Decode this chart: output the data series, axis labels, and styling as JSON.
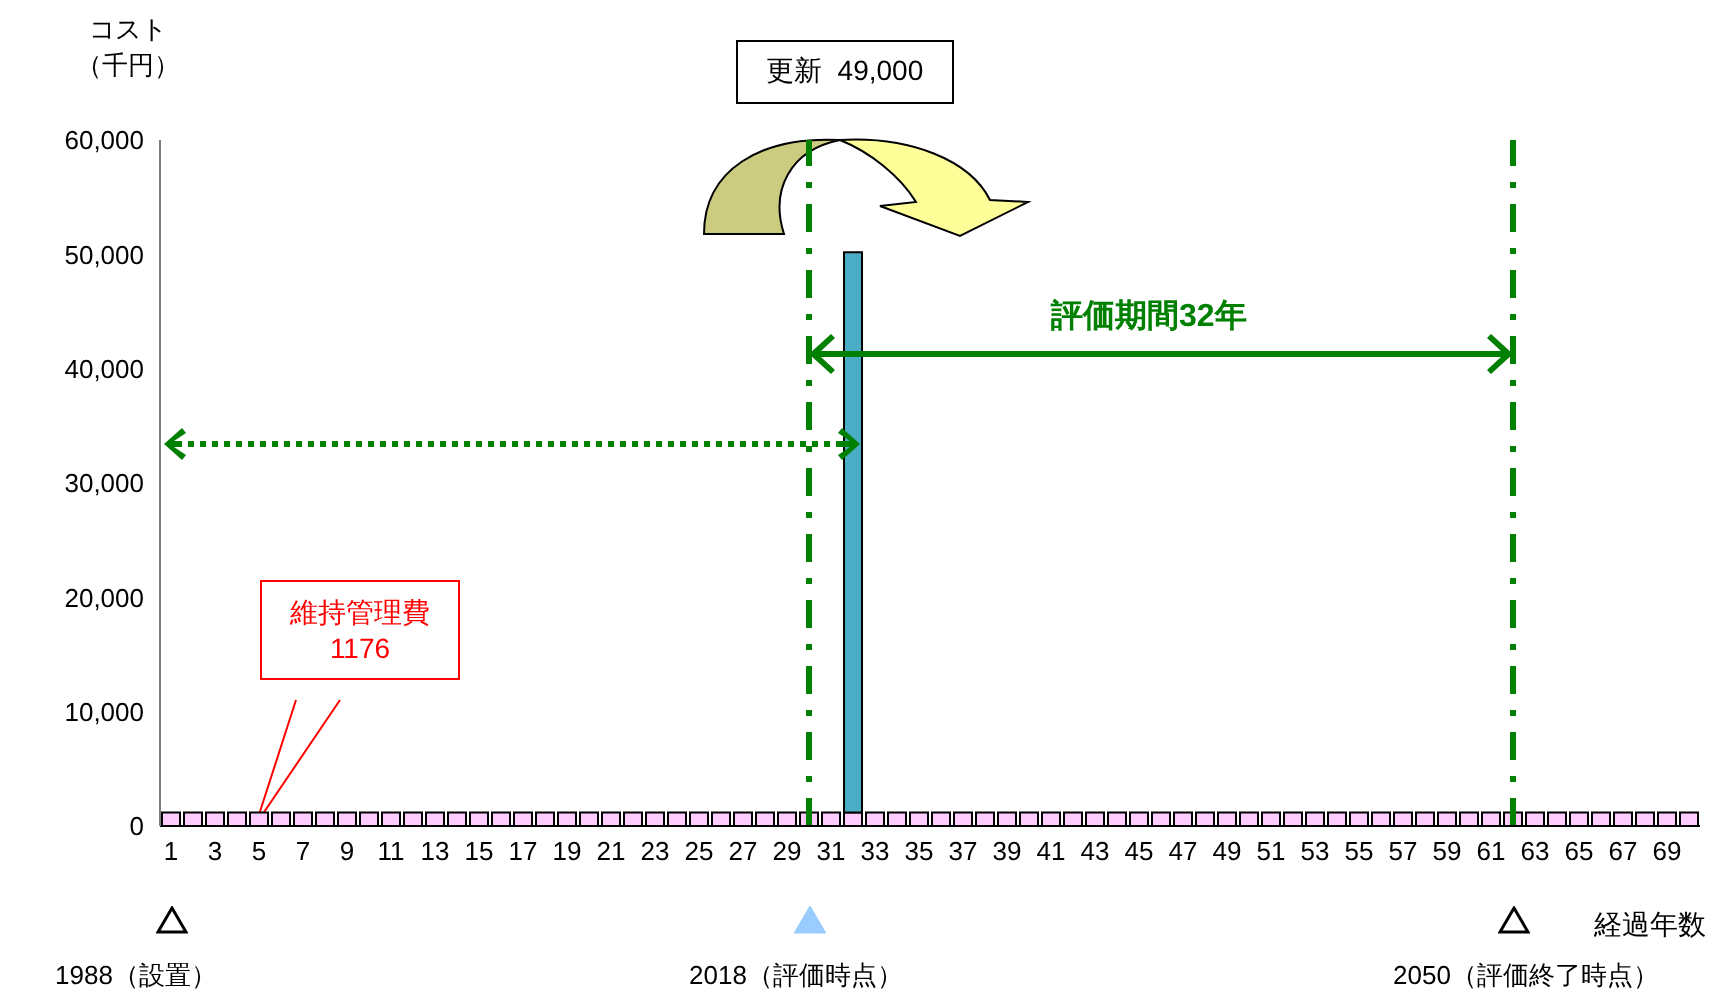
{
  "chart_data": {
    "type": "bar",
    "stacked": true,
    "x": [
      1,
      2,
      3,
      4,
      5,
      6,
      7,
      8,
      9,
      10,
      11,
      12,
      13,
      14,
      15,
      16,
      17,
      18,
      19,
      20,
      21,
      22,
      23,
      24,
      25,
      26,
      27,
      28,
      29,
      30,
      31,
      32,
      33,
      34,
      35,
      36,
      37,
      38,
      39,
      40,
      41,
      42,
      43,
      44,
      45,
      46,
      47,
      48,
      49,
      50,
      51,
      52,
      53,
      54,
      55,
      56,
      57,
      58,
      59,
      60,
      61,
      62,
      63,
      64,
      65,
      66,
      67,
      68,
      69,
      70
    ],
    "series": [
      {
        "color": "#ffccff",
        "values": [
          1176,
          1176,
          1176,
          1176,
          1176,
          1176,
          1176,
          1176,
          1176,
          1176,
          1176,
          1176,
          1176,
          1176,
          1176,
          1176,
          1176,
          1176,
          1176,
          1176,
          1176,
          1176,
          1176,
          1176,
          1176,
          1176,
          1176,
          1176,
          1176,
          1176,
          1176,
          1176,
          1176,
          1176,
          1176,
          1176,
          1176,
          1176,
          1176,
          1176,
          1176,
          1176,
          1176,
          1176,
          1176,
          1176,
          1176,
          1176,
          1176,
          1176,
          1176,
          1176,
          1176,
          1176,
          1176,
          1176,
          1176,
          1176,
          1176,
          1176,
          1176,
          1176,
          1176,
          1176,
          1176,
          1176,
          1176,
          1176,
          1176,
          1176
        ]
      },
      {
        "color": "#4bacc6",
        "values": [
          null,
          null,
          null,
          null,
          null,
          null,
          null,
          null,
          null,
          null,
          null,
          null,
          null,
          null,
          null,
          null,
          null,
          null,
          null,
          null,
          null,
          null,
          null,
          null,
          null,
          null,
          null,
          null,
          null,
          null,
          null,
          49000,
          null,
          null,
          null,
          null,
          null,
          null,
          null,
          null,
          null,
          null,
          null,
          null,
          null,
          null,
          null,
          null,
          null,
          null,
          null,
          null,
          null,
          null,
          null,
          null,
          null,
          null,
          null,
          null,
          null,
          null,
          null,
          null,
          null,
          null,
          null,
          null,
          null,
          null
        ]
      }
    ],
    "xlim": [
      0.5,
      70.5
    ],
    "xticks": [
      1,
      3,
      5,
      7,
      9,
      11,
      13,
      15,
      17,
      19,
      21,
      23,
      25,
      27,
      29,
      31,
      33,
      35,
      37,
      39,
      41,
      43,
      45,
      47,
      49,
      51,
      53,
      55,
      57,
      59,
      61,
      63,
      65,
      67,
      69
    ],
    "ylim": [
      0,
      60000
    ],
    "yticks": [
      {
        "value": 0,
        "label": "0"
      },
      {
        "value": 10000,
        "label": "10,000"
      },
      {
        "value": 20000,
        "label": "20,000"
      },
      {
        "value": 30000,
        "label": "30,000"
      },
      {
        "value": 40000,
        "label": "40,000"
      },
      {
        "value": 50000,
        "label": "50,000"
      },
      {
        "value": 60000,
        "label": "60,000"
      }
    ],
    "ylabel": "コスト（千円）",
    "xlabel": "経過年数",
    "ref_lines": [
      {
        "axis": "x",
        "value": 30,
        "color": "#008000",
        "line_style": "dashdot"
      },
      {
        "axis": "x",
        "value": 62,
        "color": "#008000",
        "line_style": "dashdot"
      }
    ],
    "annotations": [
      "更新  49,000",
      "維持管理費\n1176",
      "評価期間32年",
      "1988（設置）",
      "2018（評価時点）",
      "2050（評価終了時点）"
    ]
  }
}
